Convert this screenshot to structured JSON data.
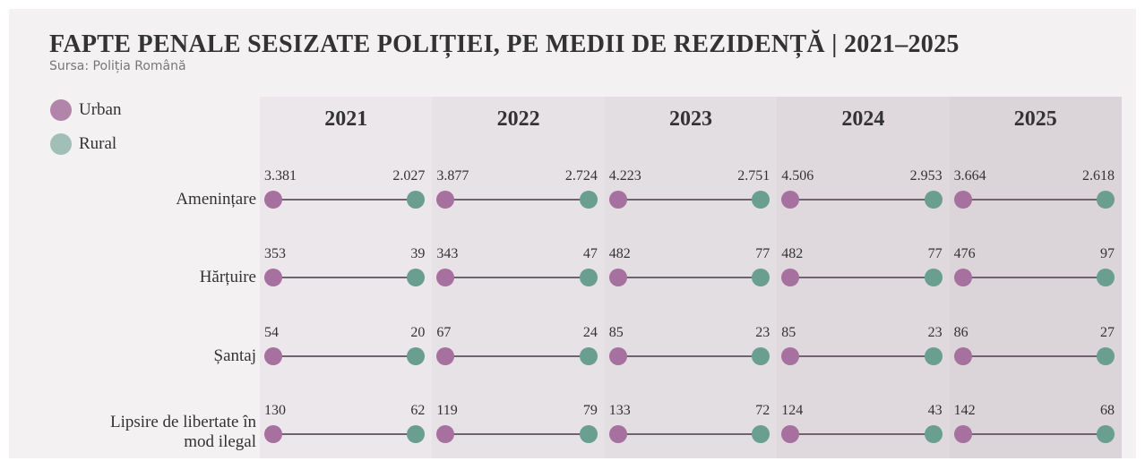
{
  "chart_data": {
    "type": "dumbbell",
    "title": "FAPTE PENALE SESIZATE POLIȚIEI, PE MEDII DE REZIDENȚĂ | 2021–2025",
    "subtitle": "Sursa: Poliția Română",
    "legend": "top-left",
    "line_color": "#6e6470",
    "panel_colors": [
      "#ebe7ea",
      "#e7e2e6",
      "#e3dee2",
      "#dfd9de",
      "#dbd4d9"
    ],
    "panels": [
      "2021",
      "2022",
      "2023",
      "2024",
      "2025"
    ],
    "categories": [
      "Amenințare",
      "Hărțuire",
      "Șantaj",
      "Lipsire de libertate în mod ilegal"
    ],
    "series": [
      {
        "name": "Urban",
        "color": "#a6719e",
        "values": [
          [
            3381,
            353,
            54,
            130
          ],
          [
            3877,
            343,
            67,
            119
          ],
          [
            4223,
            482,
            85,
            133
          ],
          [
            4506,
            482,
            85,
            124
          ],
          [
            3664,
            476,
            86,
            142
          ]
        ],
        "value_labels": [
          [
            "3.381",
            "353",
            "54",
            "130"
          ],
          [
            "3.877",
            "343",
            "67",
            "119"
          ],
          [
            "4.223",
            "482",
            "85",
            "133"
          ],
          [
            "4.506",
            "482",
            "85",
            "124"
          ],
          [
            "3.664",
            "476",
            "86",
            "142"
          ]
        ]
      },
      {
        "name": "Rural",
        "color": "#6a9e8e",
        "values": [
          [
            2027,
            39,
            20,
            62
          ],
          [
            2724,
            47,
            24,
            79
          ],
          [
            2751,
            77,
            23,
            72
          ],
          [
            2953,
            77,
            23,
            43
          ],
          [
            2618,
            97,
            27,
            68
          ]
        ],
        "value_labels": [
          [
            "2.027",
            "39",
            "20",
            "62"
          ],
          [
            "2.724",
            "47",
            "24",
            "79"
          ],
          [
            "2.751",
            "77",
            "23",
            "72"
          ],
          [
            "2.953",
            "77",
            "23",
            "43"
          ],
          [
            "2.618",
            "97",
            "27",
            "68"
          ]
        ]
      }
    ]
  }
}
